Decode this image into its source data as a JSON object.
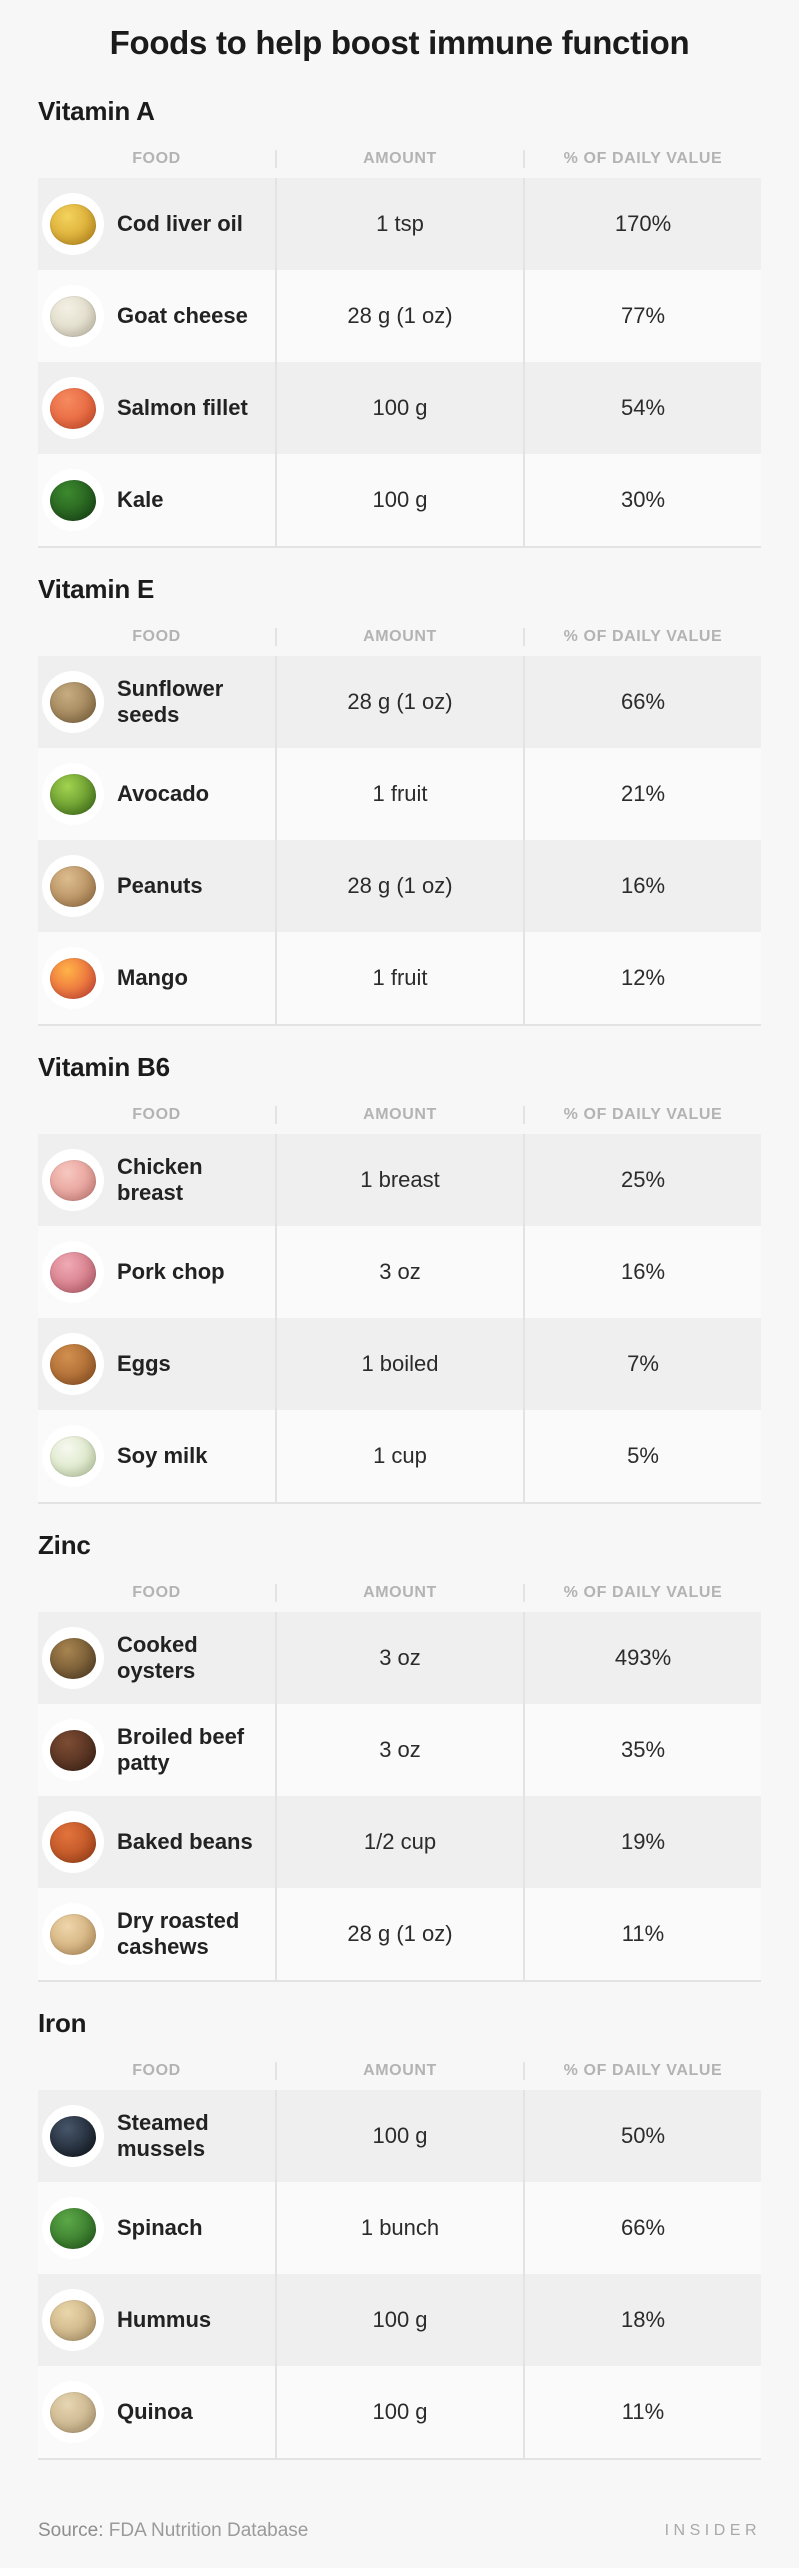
{
  "title": "Foods to help boost immune function",
  "columns": {
    "food": "FOOD",
    "amount": "AMOUNT",
    "dv": "% OF DAILY VALUE"
  },
  "footer": {
    "source_label": "Source:",
    "source_value": "FDA Nutrition Database",
    "brand": "INSIDER"
  },
  "colors": {
    "page_bg": "#f7f7f7",
    "row_shaded": "#efefef",
    "row_plain": "#fafafa",
    "divider": "#e3e3e3",
    "header_text": "#b3b3b3",
    "heading_text": "#1b1b1b",
    "body_text": "#2b2b2b",
    "footer_text": "#9b9b9b",
    "brand_text": "#a9a9a9"
  },
  "sections": [
    {
      "name": "Vitamin A",
      "rows": [
        {
          "food": "Cod liver oil",
          "amount": "1 tsp",
          "dv": "170%",
          "icon": "cod-liver-oil-icon",
          "icon_colors": [
            "#f3d35d",
            "#cf9b25"
          ]
        },
        {
          "food": "Goat cheese",
          "amount": "28 g (1 oz)",
          "dv": "77%",
          "icon": "goat-cheese-icon",
          "icon_colors": [
            "#f3f0e4",
            "#d9d3be"
          ]
        },
        {
          "food": "Salmon fillet",
          "amount": "100 g",
          "dv": "54%",
          "icon": "salmon-fillet-icon",
          "icon_colors": [
            "#f58a60",
            "#e25a33"
          ]
        },
        {
          "food": "Kale",
          "amount": "100 g",
          "dv": "30%",
          "icon": "kale-icon",
          "icon_colors": [
            "#3c8a2e",
            "#1d4e19"
          ]
        }
      ]
    },
    {
      "name": "Vitamin E",
      "rows": [
        {
          "food": "Sunflower seeds",
          "amount": "28 g (1 oz)",
          "dv": "66%",
          "icon": "sunflower-seeds-icon",
          "icon_colors": [
            "#c7ab81",
            "#8f7349"
          ]
        },
        {
          "food": "Avocado",
          "amount": "1 fruit",
          "dv": "21%",
          "icon": "avocado-icon",
          "icon_colors": [
            "#a3d34f",
            "#4c7f20"
          ]
        },
        {
          "food": "Peanuts",
          "amount": "28 g (1 oz)",
          "dv": "16%",
          "icon": "peanuts-icon",
          "icon_colors": [
            "#dcbc8e",
            "#a87f4f"
          ]
        },
        {
          "food": "Mango",
          "amount": "1 fruit",
          "dv": "12%",
          "icon": "mango-icon",
          "icon_colors": [
            "#ffb347",
            "#e2543b"
          ]
        }
      ]
    },
    {
      "name": "Vitamin B6",
      "rows": [
        {
          "food": "Chicken breast",
          "amount": "1 breast",
          "dv": "25%",
          "icon": "chicken-breast-icon",
          "icon_colors": [
            "#f6c8c0",
            "#e0908a"
          ]
        },
        {
          "food": "Pork chop",
          "amount": "3 oz",
          "dv": "16%",
          "icon": "pork-chop-icon",
          "icon_colors": [
            "#f0aab4",
            "#ca6b79"
          ]
        },
        {
          "food": "Eggs",
          "amount": "1 boiled",
          "dv": "7%",
          "icon": "eggs-icon",
          "icon_colors": [
            "#d28f4e",
            "#9d5d29"
          ]
        },
        {
          "food": "Soy milk",
          "amount": "1 cup",
          "dv": "5%",
          "icon": "soy-milk-icon",
          "icon_colors": [
            "#f7f8f0",
            "#cfe0b6"
          ]
        }
      ]
    },
    {
      "name": "Zinc",
      "rows": [
        {
          "food": "Cooked oysters",
          "amount": "3 oz",
          "dv": "493%",
          "icon": "cooked-oysters-icon",
          "icon_colors": [
            "#a8844f",
            "#60492a"
          ]
        },
        {
          "food": "Broiled beef patty",
          "amount": "3 oz",
          "dv": "35%",
          "icon": "broiled-beef-patty-icon",
          "icon_colors": [
            "#7d4c34",
            "#47291a"
          ]
        },
        {
          "food": "Baked beans",
          "amount": "1/2 cup",
          "dv": "19%",
          "icon": "baked-beans-icon",
          "icon_colors": [
            "#e2733c",
            "#b04a1e"
          ]
        },
        {
          "food": "Dry roasted cashews",
          "amount": "28 g (1 oz)",
          "dv": "11%",
          "icon": "dry-roasted-cashews-icon",
          "icon_colors": [
            "#eed6ab",
            "#c9a26b"
          ]
        }
      ]
    },
    {
      "name": "Iron",
      "rows": [
        {
          "food": "Steamed mussels",
          "amount": "100 g",
          "dv": "50%",
          "icon": "steamed-mussels-icon",
          "icon_colors": [
            "#47566a",
            "#161d27"
          ]
        },
        {
          "food": "Spinach",
          "amount": "1 bunch",
          "dv": "66%",
          "icon": "spinach-icon",
          "icon_colors": [
            "#5ca847",
            "#2c6a23"
          ]
        },
        {
          "food": "Hummus",
          "amount": "100 g",
          "dv": "18%",
          "icon": "hummus-icon",
          "icon_colors": [
            "#ead7ac",
            "#c1a677"
          ]
        },
        {
          "food": "Quinoa",
          "amount": "100 g",
          "dv": "11%",
          "icon": "quinoa-icon",
          "icon_colors": [
            "#e6d6b2",
            "#c0a87e"
          ]
        }
      ]
    }
  ],
  "chart_data": [
    {
      "type": "table",
      "title": "Vitamin A",
      "columns": [
        "FOOD",
        "AMOUNT",
        "% OF DAILY VALUE"
      ],
      "rows": [
        [
          "Cod liver oil",
          "1 tsp",
          "170%"
        ],
        [
          "Goat cheese",
          "28 g (1 oz)",
          "77%"
        ],
        [
          "Salmon fillet",
          "100 g",
          "54%"
        ],
        [
          "Kale",
          "100 g",
          "30%"
        ]
      ]
    },
    {
      "type": "table",
      "title": "Vitamin E",
      "columns": [
        "FOOD",
        "AMOUNT",
        "% OF DAILY VALUE"
      ],
      "rows": [
        [
          "Sunflower seeds",
          "28 g (1 oz)",
          "66%"
        ],
        [
          "Avocado",
          "1 fruit",
          "21%"
        ],
        [
          "Peanuts",
          "28 g (1 oz)",
          "16%"
        ],
        [
          "Mango",
          "1 fruit",
          "12%"
        ]
      ]
    },
    {
      "type": "table",
      "title": "Vitamin B6",
      "columns": [
        "FOOD",
        "AMOUNT",
        "% OF DAILY VALUE"
      ],
      "rows": [
        [
          "Chicken breast",
          "1 breast",
          "25%"
        ],
        [
          "Pork chop",
          "3 oz",
          "16%"
        ],
        [
          "Eggs",
          "1 boiled",
          "7%"
        ],
        [
          "Soy milk",
          "1 cup",
          "5%"
        ]
      ]
    },
    {
      "type": "table",
      "title": "Zinc",
      "columns": [
        "FOOD",
        "AMOUNT",
        "% OF DAILY VALUE"
      ],
      "rows": [
        [
          "Cooked oysters",
          "3 oz",
          "493%"
        ],
        [
          "Broiled beef patty",
          "3 oz",
          "35%"
        ],
        [
          "Baked beans",
          "1/2 cup",
          "19%"
        ],
        [
          "Dry roasted cashews",
          "28 g (1 oz)",
          "11%"
        ]
      ]
    },
    {
      "type": "table",
      "title": "Iron",
      "columns": [
        "FOOD",
        "AMOUNT",
        "% OF DAILY VALUE"
      ],
      "rows": [
        [
          "Steamed mussels",
          "100 g",
          "50%"
        ],
        [
          "Spinach",
          "1 bunch",
          "66%"
        ],
        [
          "Hummus",
          "100 g",
          "18%"
        ],
        [
          "Quinoa",
          "100 g",
          "11%"
        ]
      ]
    }
  ]
}
